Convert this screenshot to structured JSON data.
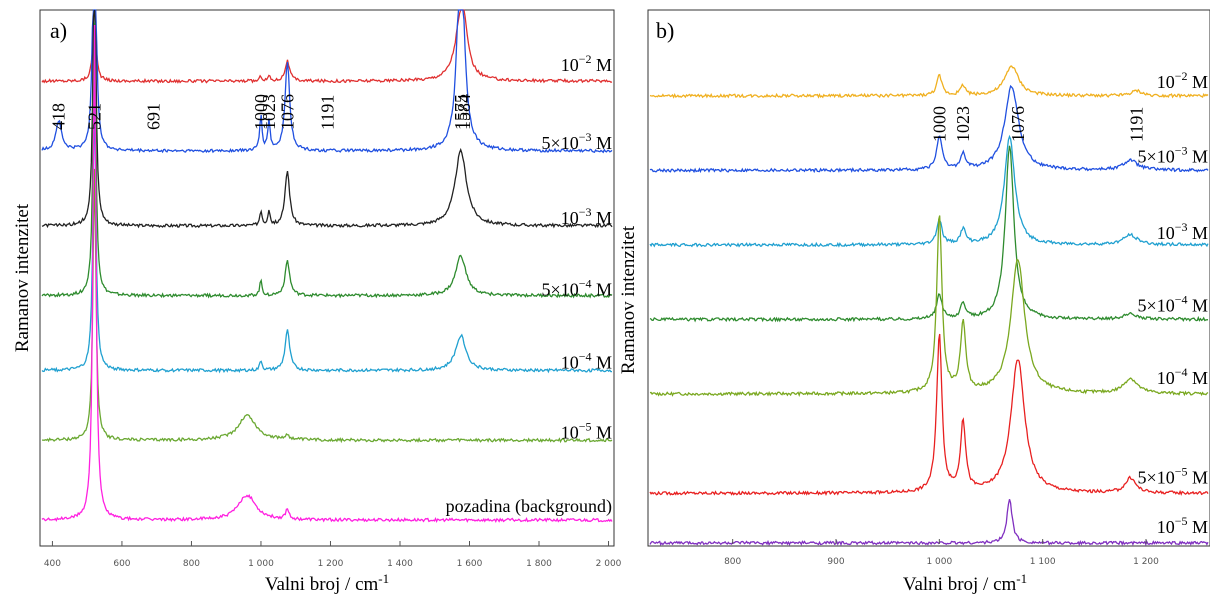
{
  "chart_data": [
    {
      "panel": "a)",
      "type": "line",
      "xlabel": "Valni broj / cm-1",
      "ylabel": "Ramanov intenzitet",
      "xlim": [
        370,
        2010
      ],
      "x_ticks": [
        "400",
        "600",
        "800",
        "1 000",
        "1 200",
        "1 400",
        "1 600",
        "1 800",
        "2 000"
      ],
      "x_tick_values": [
        400,
        600,
        800,
        1000,
        1200,
        1400,
        1600,
        1800,
        2000
      ],
      "grid": false,
      "peak_labels": [
        "418",
        "521",
        "691",
        "1000",
        "1023",
        "1076",
        "1191",
        "1575",
        "1584"
      ],
      "peak_positions": [
        418,
        521,
        691,
        1000,
        1023,
        1076,
        1191,
        1575,
        1584
      ],
      "series": [
        {
          "label_main": "10",
          "label_exp": "−2",
          "label_unit": " M",
          "color": "#e03030",
          "baseline": 0.93,
          "peaks": [
            [
              521,
              0.12,
              6
            ],
            [
              1000,
              0.01,
              4
            ],
            [
              1023,
              0.01,
              4
            ],
            [
              1076,
              0.04,
              8
            ],
            [
              1575,
              0.12,
              20
            ],
            [
              1584,
              0.05,
              10
            ]
          ]
        },
        {
          "label_main": "5×10",
          "label_exp": "−3",
          "label_unit": " M",
          "color": "#2050e0",
          "baseline": 0.79,
          "peaks": [
            [
              418,
              0.06,
              10
            ],
            [
              521,
              0.6,
              5
            ],
            [
              1000,
              0.07,
              4
            ],
            [
              1023,
              0.06,
              4
            ],
            [
              1076,
              0.18,
              8
            ],
            [
              1575,
              0.42,
              12
            ]
          ]
        },
        {
          "label_main": "10",
          "label_exp": "−3",
          "label_unit": " M",
          "color": "#222222",
          "baseline": 0.64,
          "peaks": [
            [
              521,
              0.55,
              5
            ],
            [
              1000,
              0.03,
              4
            ],
            [
              1023,
              0.03,
              4
            ],
            [
              1076,
              0.11,
              8
            ],
            [
              1575,
              0.15,
              20
            ]
          ]
        },
        {
          "label_main": "5×10",
          "label_exp": "−4",
          "label_unit": " M",
          "color": "#2e8b2e",
          "baseline": 0.5,
          "peaks": [
            [
              521,
              0.55,
              5
            ],
            [
              1000,
              0.03,
              4
            ],
            [
              1076,
              0.07,
              8
            ],
            [
              1575,
              0.08,
              18
            ]
          ]
        },
        {
          "label_main": "10",
          "label_exp": "−4",
          "label_unit": " M",
          "color": "#20a0d0",
          "baseline": 0.35,
          "peaks": [
            [
              521,
              0.55,
              5
            ],
            [
              1000,
              0.02,
              4
            ],
            [
              1076,
              0.08,
              8
            ],
            [
              1575,
              0.07,
              18
            ]
          ]
        },
        {
          "label_main": "10",
          "label_exp": "−5",
          "label_unit": " M",
          "color": "#6aa832",
          "baseline": 0.21,
          "peaks": [
            [
              521,
              0.55,
              5
            ],
            [
              960,
              0.05,
              30
            ],
            [
              1076,
              0.01,
              6
            ]
          ]
        },
        {
          "label_main": "pozadina (background)",
          "label_exp": "",
          "label_unit": "",
          "color": "#ff20e0",
          "baseline": 0.05,
          "peaks": [
            [
              521,
              1.0,
              5
            ],
            [
              960,
              0.05,
              30
            ],
            [
              1076,
              0.02,
              6
            ]
          ]
        }
      ]
    },
    {
      "panel": "b)",
      "type": "line",
      "xlabel": "Valni broj / cm-1",
      "ylabel": "Ramanov intenzitet",
      "xlim": [
        720,
        1260
      ],
      "x_ticks": [
        "800",
        "900",
        "1 000",
        "1 100",
        "1 200"
      ],
      "x_tick_values": [
        800,
        900,
        1000,
        1100,
        1200
      ],
      "grid": false,
      "peak_labels": [
        "1000",
        "1023",
        "1076",
        "1191"
      ],
      "peak_positions": [
        1000,
        1023,
        1076,
        1191
      ],
      "series": [
        {
          "label_main": "10",
          "label_exp": "−2",
          "label_unit": " M",
          "color": "#f0b020",
          "baseline": 0.9,
          "peaks": [
            [
              1000,
              0.04,
              3
            ],
            [
              1023,
              0.02,
              3
            ],
            [
              1070,
              0.06,
              8
            ],
            [
              1191,
              0.01,
              6
            ]
          ]
        },
        {
          "label_main": "5×10",
          "label_exp": "−3",
          "label_unit": " M",
          "color": "#2050e0",
          "baseline": 0.75,
          "peaks": [
            [
              1000,
              0.07,
              3
            ],
            [
              1023,
              0.03,
              3
            ],
            [
              1070,
              0.17,
              8
            ],
            [
              1185,
              0.02,
              8
            ]
          ]
        },
        {
          "label_main": "10",
          "label_exp": "−3",
          "label_unit": " M",
          "color": "#20a0d0",
          "baseline": 0.6,
          "peaks": [
            [
              1000,
              0.05,
              3
            ],
            [
              1023,
              0.03,
              3
            ],
            [
              1068,
              0.22,
              6
            ],
            [
              1185,
              0.02,
              8
            ]
          ]
        },
        {
          "label_main": "5×10",
          "label_exp": "−4",
          "label_unit": " M",
          "color": "#2e8b2e",
          "baseline": 0.45,
          "peaks": [
            [
              1000,
              0.05,
              3
            ],
            [
              1023,
              0.03,
              3
            ],
            [
              1068,
              0.35,
              5
            ],
            [
              1185,
              0.01,
              8
            ]
          ]
        },
        {
          "label_main": "10",
          "label_exp": "−4",
          "label_unit": " M",
          "color": "#7aa820",
          "baseline": 0.3,
          "peaks": [
            [
              1000,
              0.36,
              3
            ],
            [
              1023,
              0.14,
              3
            ],
            [
              1076,
              0.27,
              8
            ],
            [
              1185,
              0.03,
              8
            ]
          ]
        },
        {
          "label_main": "5×10",
          "label_exp": "−5",
          "label_unit": " M",
          "color": "#e82020",
          "baseline": 0.1,
          "peaks": [
            [
              1000,
              0.32,
              3
            ],
            [
              1023,
              0.14,
              3
            ],
            [
              1076,
              0.27,
              8
            ],
            [
              1185,
              0.03,
              6
            ]
          ]
        },
        {
          "label_main": "10",
          "label_exp": "−5",
          "label_unit": " M",
          "color": "#8030c0",
          "baseline": 0.0,
          "peaks": [
            [
              1068,
              0.09,
              3
            ]
          ]
        }
      ]
    }
  ]
}
